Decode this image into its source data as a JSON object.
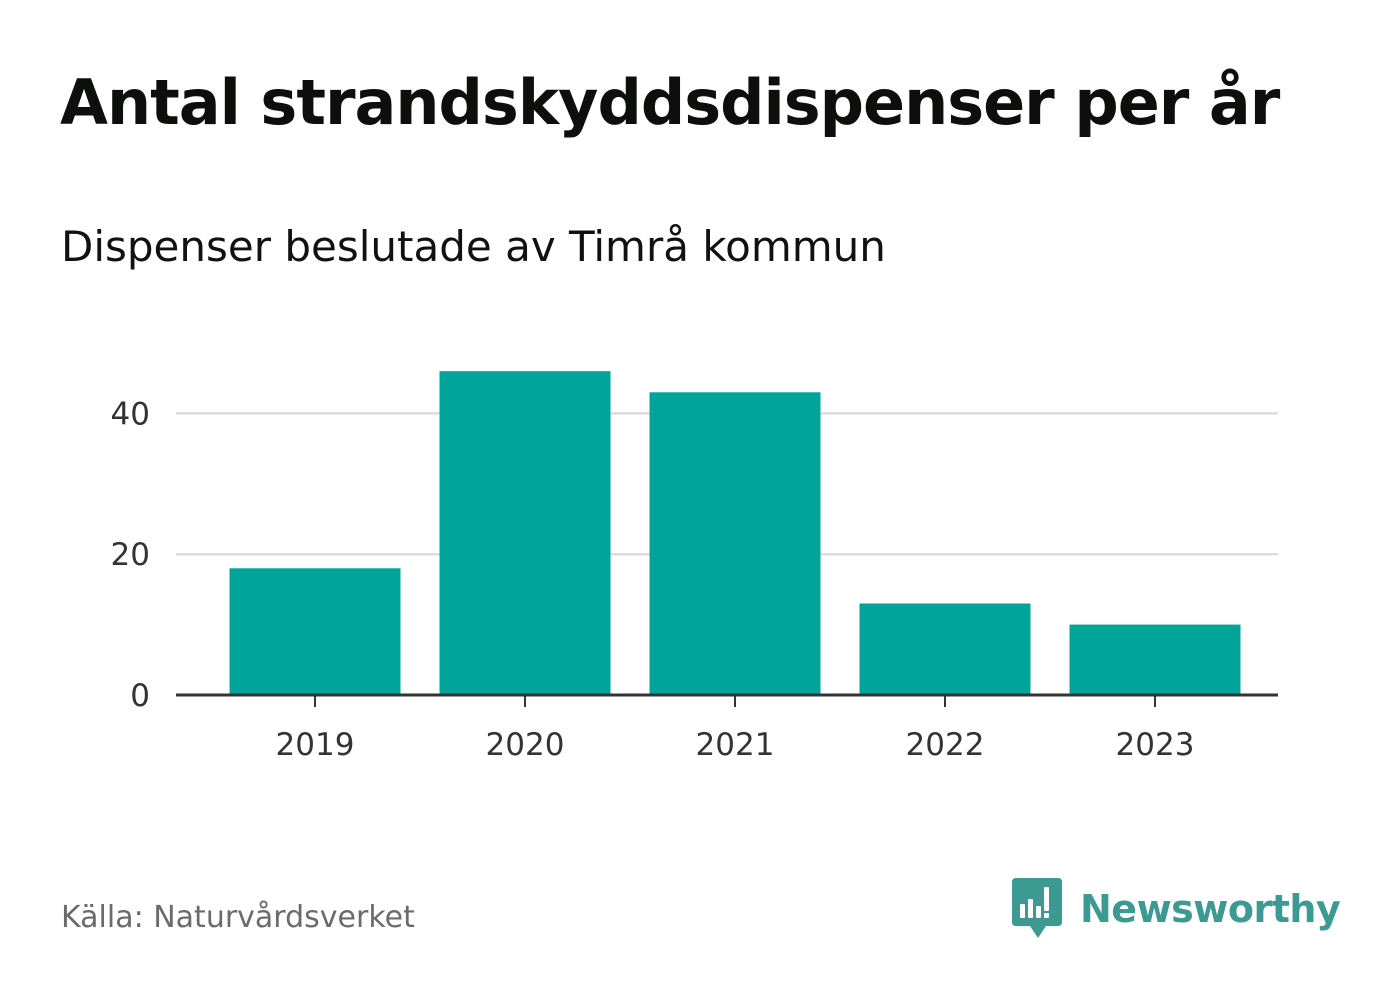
{
  "title": "Antal strandskyddsdispenser per år",
  "subtitle": "Dispenser beslutade av Timrå kommun",
  "source": "Källa: Naturvårdsverket",
  "brand": {
    "name": "Newsworthy",
    "icon": "newsworthy-logo-icon",
    "color": "#3c9a92"
  },
  "colors": {
    "bar": "#00a499",
    "grid": "#dddddd",
    "axis": "#333333",
    "tick_text": "#333333"
  },
  "chart_data": {
    "type": "bar",
    "title": "Antal strandskyddsdispenser per år",
    "subtitle": "Dispenser beslutade av Timrå kommun",
    "categories": [
      "2019",
      "2020",
      "2021",
      "2022",
      "2023"
    ],
    "values": [
      18,
      46,
      43,
      13,
      10
    ],
    "xlabel": "",
    "ylabel": "",
    "ylim": [
      0,
      46
    ],
    "yticks": [
      0,
      20,
      40
    ],
    "grid": true,
    "legend": "none"
  }
}
